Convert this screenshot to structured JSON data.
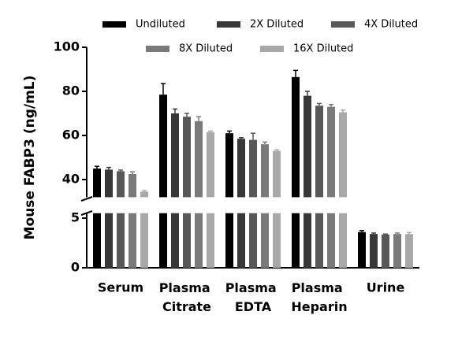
{
  "chart_data": {
    "type": "bar",
    "y_label": "Mouse FABP3 (ng/mL)",
    "categories": [
      "Serum",
      "Plasma Citrate",
      "Plasma EDTA",
      "Plasma Heparin",
      "Urine"
    ],
    "series": [
      {
        "name": "Undiluted",
        "color": "#000000",
        "values": [
          45,
          78.5,
          61,
          86.5,
          3.6
        ],
        "errors": [
          1,
          5,
          1,
          3,
          0.15
        ]
      },
      {
        "name": "2X Diluted",
        "color": "#383838",
        "values": [
          44.5,
          70,
          58.5,
          78,
          3.4
        ],
        "errors": [
          1,
          2,
          0.5,
          2,
          0.1
        ]
      },
      {
        "name": "4X Diluted",
        "color": "#585858",
        "values": [
          43.8,
          68.5,
          58,
          73.5,
          3.35
        ],
        "errors": [
          0.5,
          1.5,
          3,
          1,
          0.05
        ]
      },
      {
        "name": "8X Diluted",
        "color": "#7a7a7a",
        "values": [
          42.5,
          66.5,
          56,
          73,
          3.4
        ],
        "errors": [
          1,
          2,
          1,
          1,
          0.1
        ]
      },
      {
        "name": "16X Diluted",
        "color": "#a8a8a8",
        "values": [
          34.5,
          61.5,
          53,
          70.5,
          3.4
        ],
        "errors": [
          0.5,
          0.5,
          0.5,
          1,
          0.15
        ]
      }
    ],
    "y_segments": [
      {
        "ylim": [
          0,
          5.5
        ],
        "yticks": [
          0,
          5
        ]
      },
      {
        "ylim": [
          32,
          100
        ],
        "yticks": [
          40,
          60,
          80,
          100
        ]
      }
    ],
    "grid": false
  }
}
